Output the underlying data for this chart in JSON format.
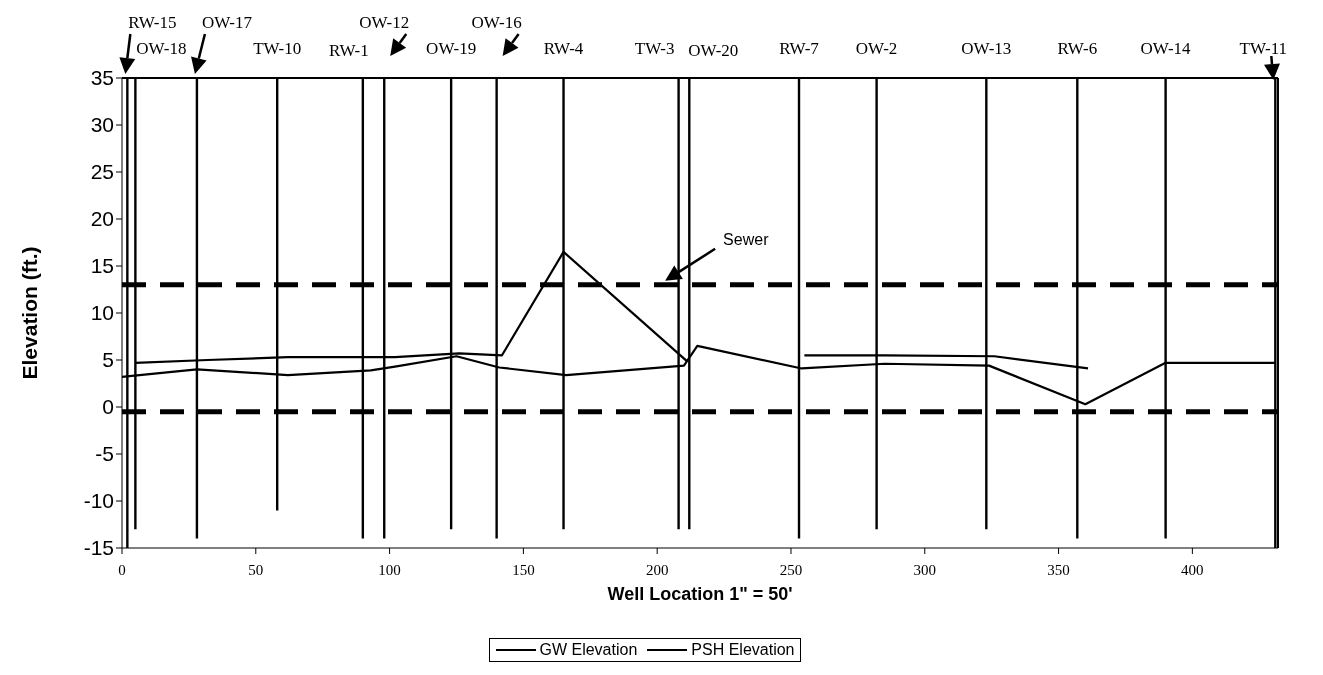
{
  "chart_data": {
    "type": "line",
    "xlabel": "Well Location   1\" = 50'",
    "ylabel": "Elevation (ft.)",
    "xlim": [
      0,
      432
    ],
    "xticks": [
      0,
      50,
      100,
      150,
      200,
      250,
      300,
      350,
      400
    ],
    "ylim": [
      -15,
      35
    ],
    "yticks": [
      -15,
      -10,
      -5,
      0,
      5,
      10,
      15,
      20,
      25,
      30,
      35
    ],
    "grid": false,
    "legend": "bottom",
    "series": [
      {
        "name": "GW Elevation",
        "color": "#000000",
        "x": [
          0,
          28,
          62,
          93,
          102,
          125,
          141,
          166,
          210,
          215,
          254,
          285,
          324,
          360,
          390,
          431
        ],
        "values": [
          3.2,
          4.0,
          3.4,
          3.9,
          4.3,
          5.4,
          4.2,
          3.4,
          4.4,
          6.5,
          4.1,
          4.6,
          4.4,
          0.3,
          4.7,
          4.7
        ]
      },
      {
        "name": "PSH Elevation",
        "color": "#000000",
        "x": [
          5,
          32,
          62,
          93,
          102,
          126,
          142,
          165,
          211,
          213,
          255,
          285,
          326,
          361
        ],
        "values": [
          4.7,
          5.0,
          5.3,
          5.3,
          5.3,
          5.7,
          5.5,
          16.5,
          4.9,
          null,
          5.5,
          5.5,
          5.4,
          4.1
        ]
      },
      {
        "color": "#000000",
        "x": [
          2,
          2
        ],
        "values": [
          35,
          -15
        ]
      },
      {
        "color": "#000000",
        "x": [
          5,
          5
        ],
        "values": [
          35,
          -13
        ]
      },
      {
        "color": "#000000",
        "x": [
          28,
          28
        ],
        "values": [
          35,
          -14
        ]
      },
      {
        "color": "#000000",
        "x": [
          58,
          58
        ],
        "values": [
          35,
          -11
        ]
      },
      {
        "color": "#000000",
        "x": [
          90,
          90
        ],
        "values": [
          35,
          -14
        ]
      },
      {
        "color": "#000000",
        "x": [
          98,
          98
        ],
        "values": [
          35,
          -14
        ]
      },
      {
        "color": "#000000",
        "x": [
          123,
          123
        ],
        "values": [
          35,
          -13
        ]
      },
      {
        "color": "#000000",
        "x": [
          140,
          140
        ],
        "values": [
          35,
          -14
        ]
      },
      {
        "color": "#000000",
        "x": [
          165,
          165
        ],
        "values": [
          35,
          -13
        ]
      },
      {
        "color": "#000000",
        "x": [
          208,
          208
        ],
        "values": [
          35,
          -13
        ]
      },
      {
        "color": "#000000",
        "x": [
          212,
          212
        ],
        "values": [
          35,
          -13
        ]
      },
      {
        "color": "#000000",
        "x": [
          253,
          253
        ],
        "values": [
          35,
          -14
        ]
      },
      {
        "color": "#000000",
        "x": [
          282,
          282
        ],
        "values": [
          35,
          -13
        ]
      },
      {
        "color": "#000000",
        "x": [
          323,
          323
        ],
        "values": [
          35,
          -13
        ]
      },
      {
        "color": "#000000",
        "x": [
          357,
          357
        ],
        "values": [
          35,
          -14
        ]
      },
      {
        "color": "#000000",
        "x": [
          390,
          390
        ],
        "values": [
          35,
          -14
        ]
      },
      {
        "color": "#000000",
        "x": [
          431,
          431
        ],
        "values": [
          35,
          -15
        ]
      }
    ],
    "ref_lines": [
      {
        "axis": "y",
        "value": 13,
        "label": "Sewer",
        "color": "#000000",
        "line_style": "dashed"
      },
      {
        "axis": "y",
        "value": -0.5,
        "color": "#000000",
        "line_style": "dashed"
      }
    ],
    "annotations": [
      {
        "text": "RW-15",
        "x": 2,
        "y": 35
      },
      {
        "text": "OW-18",
        "x": 5,
        "y": 35
      },
      {
        "text": "OW-17",
        "x": 28,
        "y": 35
      },
      {
        "text": "TW-10",
        "x": 58,
        "y": 35
      },
      {
        "text": "RW-1",
        "x": 90,
        "y": 35
      },
      {
        "text": "OW-12",
        "x": 98,
        "y": 35
      },
      {
        "text": "OW-19",
        "x": 123,
        "y": 35
      },
      {
        "text": "OW-16",
        "x": 140,
        "y": 35
      },
      {
        "text": "RW-4",
        "x": 165,
        "y": 35
      },
      {
        "text": "TW-3",
        "x": 208,
        "y": 35
      },
      {
        "text": "OW-20",
        "x": 212,
        "y": 35
      },
      {
        "text": "RW-7",
        "x": 253,
        "y": 35
      },
      {
        "text": "OW-2",
        "x": 282,
        "y": 35
      },
      {
        "text": "OW-13",
        "x": 323,
        "y": 35
      },
      {
        "text": "RW-6",
        "x": 357,
        "y": 35
      },
      {
        "text": "OW-14",
        "x": 390,
        "y": 35
      },
      {
        "text": "TW-11",
        "x": 431,
        "y": 35
      }
    ]
  }
}
